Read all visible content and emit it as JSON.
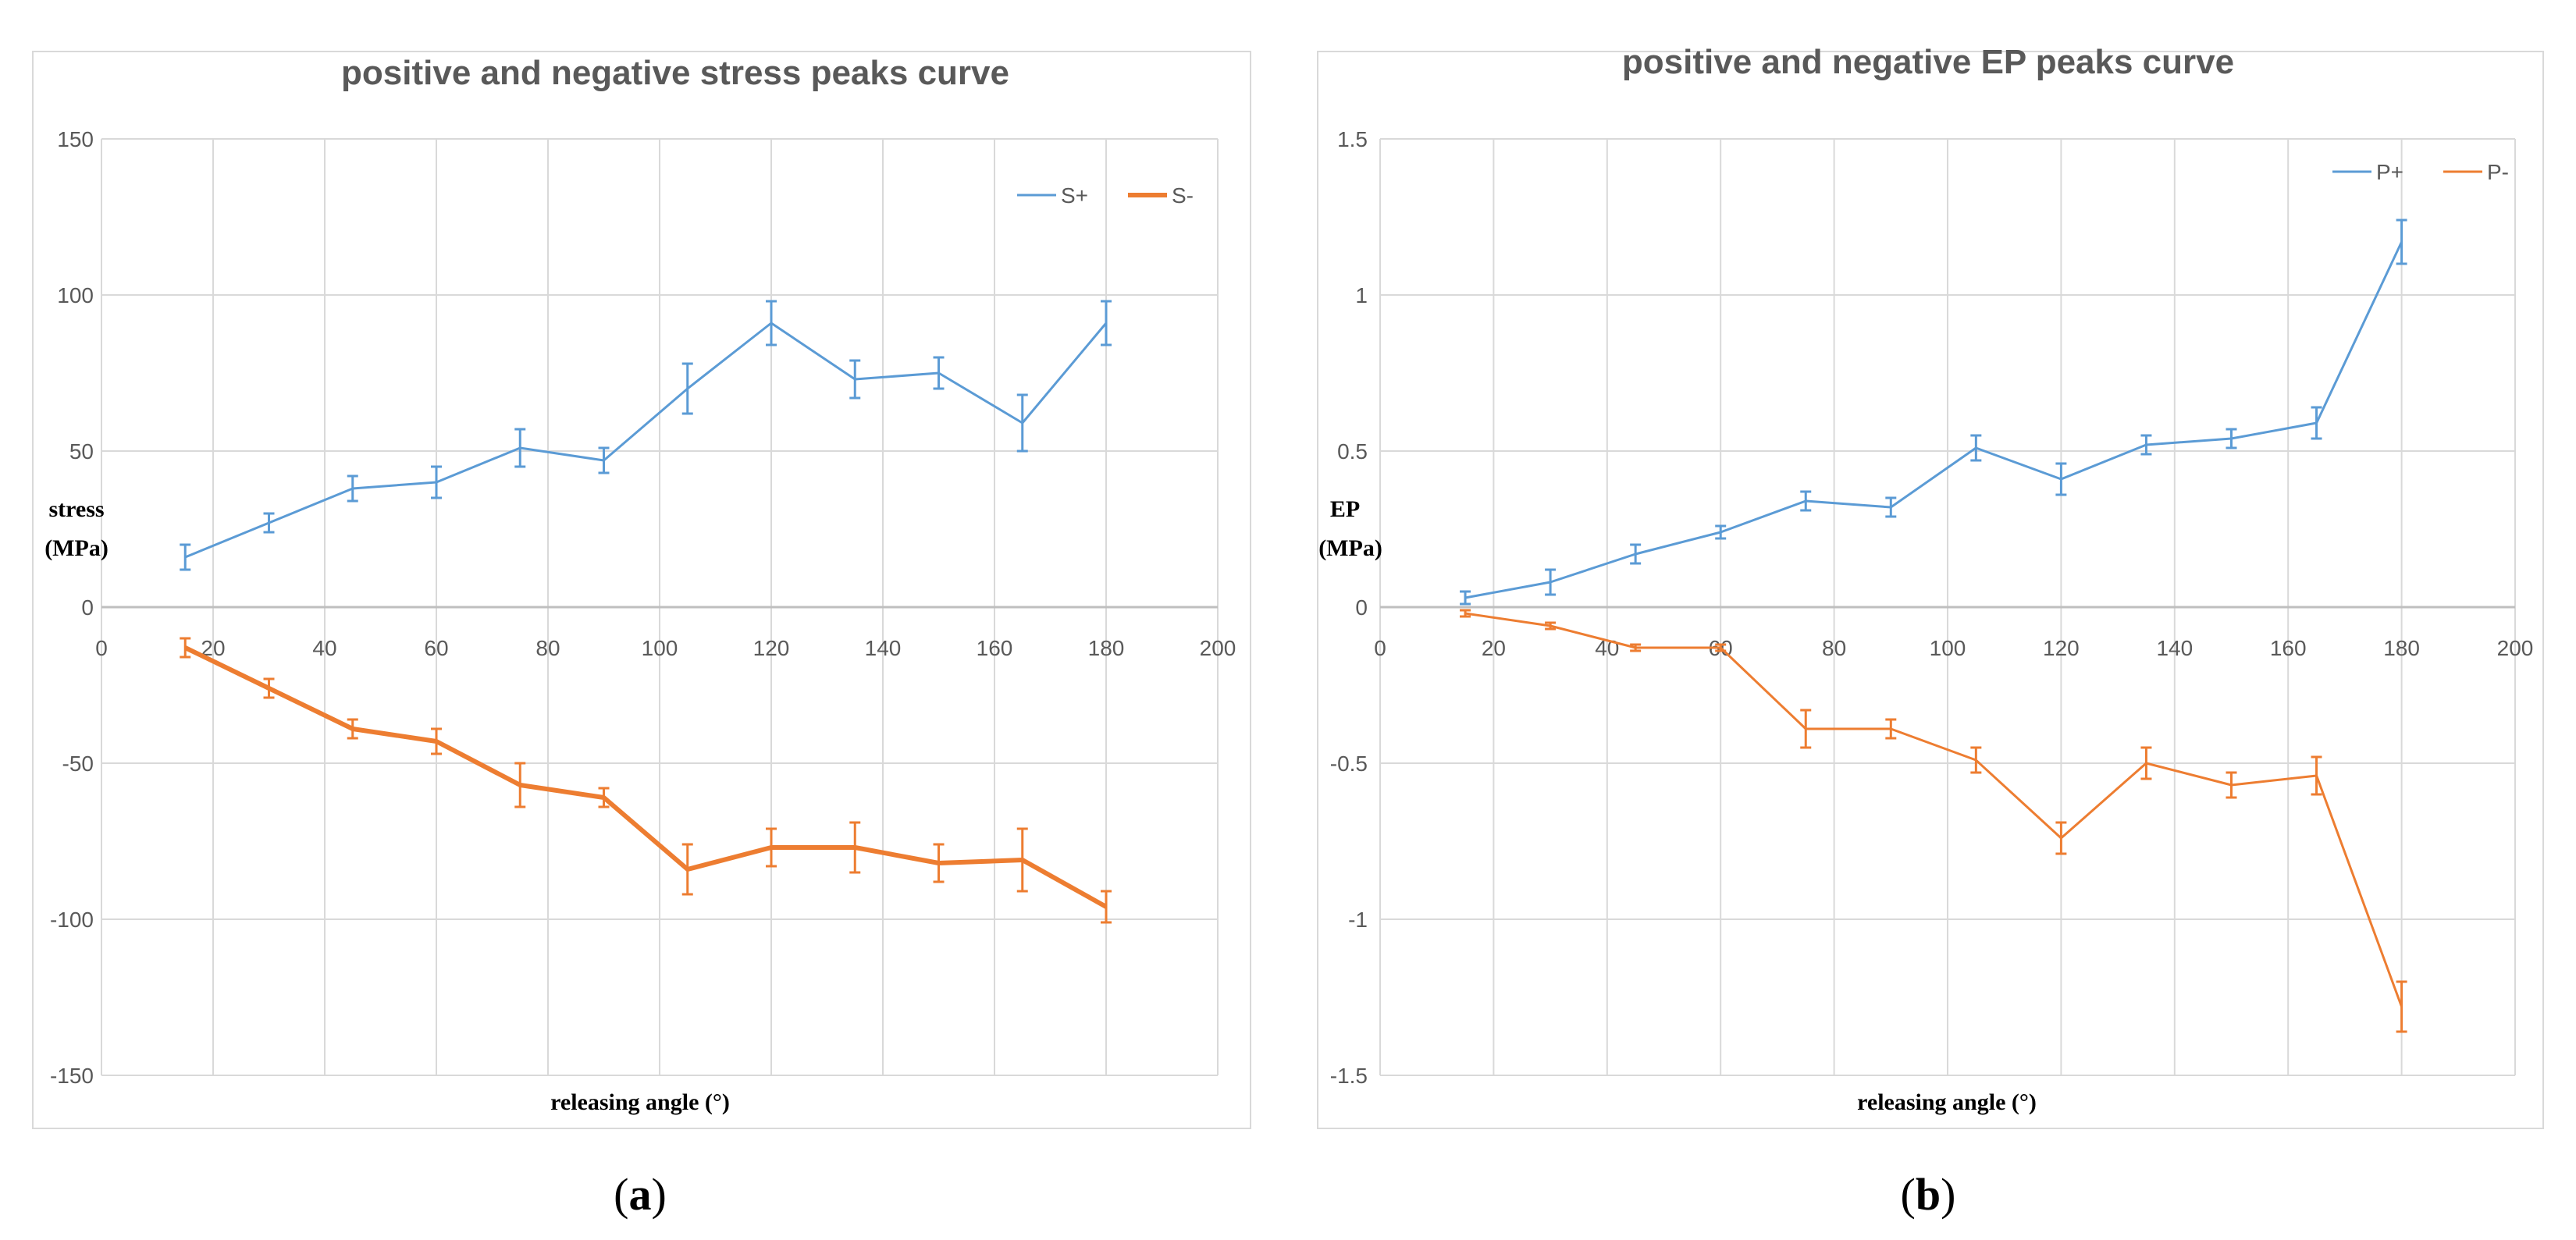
{
  "chart_data": [
    {
      "type": "line",
      "caption_letter": "a",
      "title": "positive and negative stress peaks curve",
      "xlabel": "releasing angle (°)",
      "ylabel_line1": "stress",
      "ylabel_line2": "(MPa)",
      "xlim": [
        0,
        200
      ],
      "ylim": [
        -150,
        150
      ],
      "xticks": [
        0,
        20,
        40,
        60,
        80,
        100,
        120,
        140,
        160,
        180,
        200
      ],
      "yticks": [
        150,
        100,
        50,
        0,
        -50,
        -100,
        -150
      ],
      "x": [
        15,
        30,
        45,
        60,
        75,
        90,
        105,
        120,
        135,
        150,
        165,
        180
      ],
      "legend_position": "top-right",
      "series": [
        {
          "name": "S+",
          "color": "#5b9bd5",
          "stroke_width": 3,
          "values": [
            16,
            27,
            38,
            40,
            51,
            47,
            70,
            91,
            73,
            75,
            59,
            91
          ],
          "errors": [
            4,
            3,
            4,
            5,
            6,
            4,
            8,
            7,
            6,
            5,
            9,
            7
          ]
        },
        {
          "name": "S-",
          "color": "#ed7d31",
          "stroke_width": 6,
          "values": [
            -13,
            -26,
            -39,
            -43,
            -57,
            -61,
            -84,
            -77,
            -77,
            -82,
            -81,
            -96
          ],
          "errors": [
            3,
            3,
            3,
            4,
            7,
            3,
            8,
            6,
            8,
            6,
            10,
            5
          ]
        }
      ]
    },
    {
      "type": "line",
      "caption_letter": "b",
      "title": "positive and negative EP peaks curve",
      "xlabel": "releasing angle (°)",
      "ylabel_line1": "EP",
      "ylabel_line2": "(MPa)",
      "xlim": [
        0,
        200
      ],
      "ylim": [
        -1.5,
        1.5
      ],
      "xticks": [
        0,
        20,
        40,
        60,
        80,
        100,
        120,
        140,
        160,
        180,
        200
      ],
      "yticks": [
        1.5,
        1,
        0.5,
        0,
        -0.5,
        -1,
        -1.5
      ],
      "x": [
        15,
        30,
        45,
        60,
        75,
        90,
        105,
        120,
        135,
        150,
        165,
        180
      ],
      "legend_position": "top-right",
      "series": [
        {
          "name": "P+",
          "color": "#5b9bd5",
          "stroke_width": 3,
          "values": [
            0.03,
            0.08,
            0.17,
            0.24,
            0.34,
            0.32,
            0.51,
            0.41,
            0.52,
            0.54,
            0.59,
            1.17
          ],
          "errors": [
            0.02,
            0.04,
            0.03,
            0.02,
            0.03,
            0.03,
            0.04,
            0.05,
            0.03,
            0.03,
            0.05,
            0.07
          ]
        },
        {
          "name": "P-",
          "color": "#ed7d31",
          "stroke_width": 3,
          "values": [
            -0.02,
            -0.06,
            -0.13,
            -0.13,
            -0.39,
            -0.39,
            -0.49,
            -0.74,
            -0.5,
            -0.57,
            -0.54,
            -1.28
          ],
          "errors": [
            0.01,
            0.01,
            0.01,
            0.01,
            0.06,
            0.03,
            0.04,
            0.05,
            0.05,
            0.04,
            0.06,
            0.08
          ]
        }
      ]
    }
  ]
}
